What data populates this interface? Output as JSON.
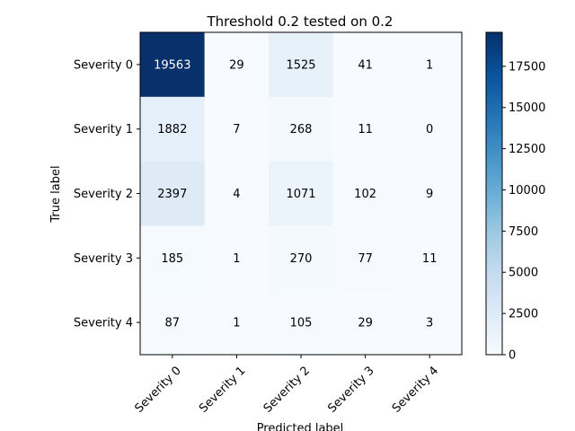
{
  "chart_data": {
    "type": "heatmap",
    "title": "Threshold 0.2 tested on 0.2",
    "xlabel": "Predicted label",
    "ylabel": "True label",
    "x_categories": [
      "Severity 0",
      "Severity 1",
      "Severity 2",
      "Severity 3",
      "Severity 4"
    ],
    "y_categories": [
      "Severity 0",
      "Severity 1",
      "Severity 2",
      "Severity 3",
      "Severity 4"
    ],
    "values": [
      [
        19563,
        29,
        1525,
        41,
        1
      ],
      [
        1882,
        7,
        268,
        11,
        0
      ],
      [
        2397,
        4,
        1071,
        102,
        9
      ],
      [
        185,
        1,
        270,
        77,
        11
      ],
      [
        87,
        1,
        105,
        29,
        3
      ]
    ],
    "colorbar": {
      "min": 0,
      "max": 19563,
      "ticks": [
        0,
        2500,
        5000,
        7500,
        10000,
        12500,
        15000,
        17500
      ],
      "colormap": "Blues",
      "low_color": "#f7fbff",
      "high_color": "#08306b"
    }
  }
}
